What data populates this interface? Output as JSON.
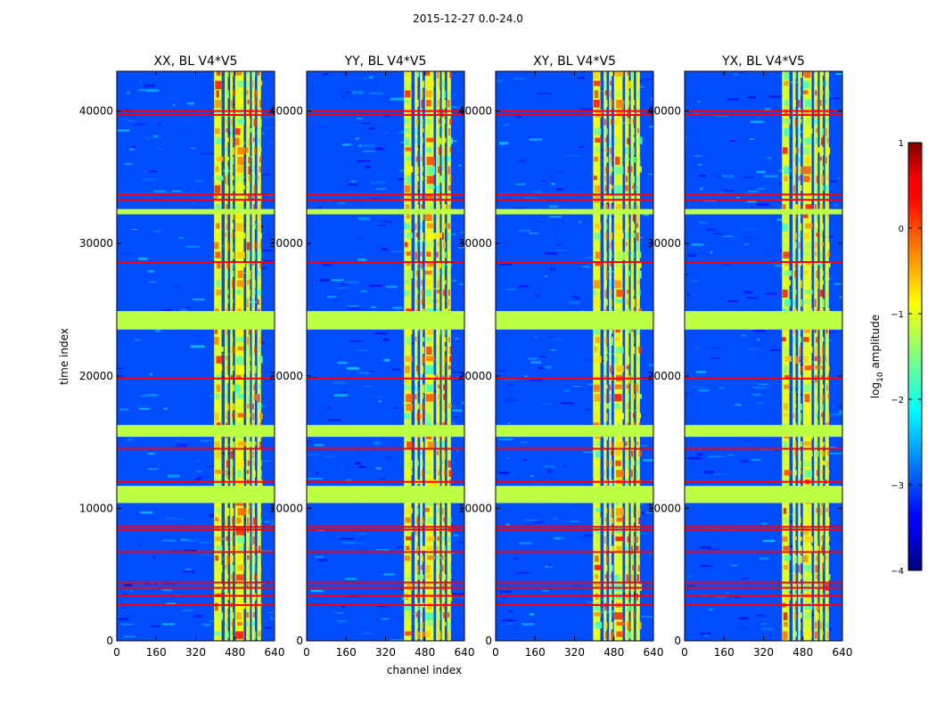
{
  "chart_data": {
    "type": "heatmap",
    "suptitle": "2015-12-27 0.0-24.0",
    "panels": [
      {
        "title": "XX, BL V4*V5",
        "polarization": "XX",
        "baseline": "BL V4*V5"
      },
      {
        "title": "YY, BL V4*V5",
        "polarization": "YY",
        "baseline": "BL V4*V5"
      },
      {
        "title": "XY, BL V4*V5",
        "polarization": "XY",
        "baseline": "BL V4*V5"
      },
      {
        "title": "YX, BL V4*V5",
        "polarization": "YX",
        "baseline": "BL V4*V5"
      }
    ],
    "xlabel": "channel index",
    "ylabel": "time index",
    "xlim": [
      0,
      640
    ],
    "ylim": [
      0,
      43000
    ],
    "xticks": [
      0,
      160,
      320,
      480,
      640
    ],
    "yticks": [
      0,
      10000,
      20000,
      30000,
      40000
    ],
    "colorbar": {
      "label": "log10 amplitude",
      "label_main": "log",
      "label_sub": "10",
      "label_rest": " amplitude",
      "range": [
        -4,
        1
      ],
      "ticks": [
        1,
        0,
        -1,
        -2,
        -3,
        -4
      ],
      "tick_labels": [
        "1",
        "0",
        "−1",
        "−2",
        "−3",
        "−4"
      ],
      "colormap": "jet"
    },
    "flagged_time_bands": [
      {
        "start": 23500,
        "end": 24900,
        "value": -1.2
      },
      {
        "start": 15400,
        "end": 16300,
        "value": -1.2
      },
      {
        "start": 10400,
        "end": 11700,
        "value": -1.2
      },
      {
        "start": 32200,
        "end": 32600,
        "value": -1.2
      }
    ],
    "rfi_time_lines": [
      40000,
      39700,
      33700,
      33300,
      28600,
      19800,
      14500,
      12000,
      8600,
      8400,
      6700,
      4400,
      4000,
      3400,
      2700
    ],
    "rfi_channel_bands": [
      [
        395,
        425
      ],
      [
        438,
        450
      ],
      [
        460,
        470
      ],
      [
        480,
        515
      ],
      [
        525,
        540
      ],
      [
        548,
        560
      ],
      [
        570,
        585
      ]
    ],
    "background_value": -3.0
  }
}
